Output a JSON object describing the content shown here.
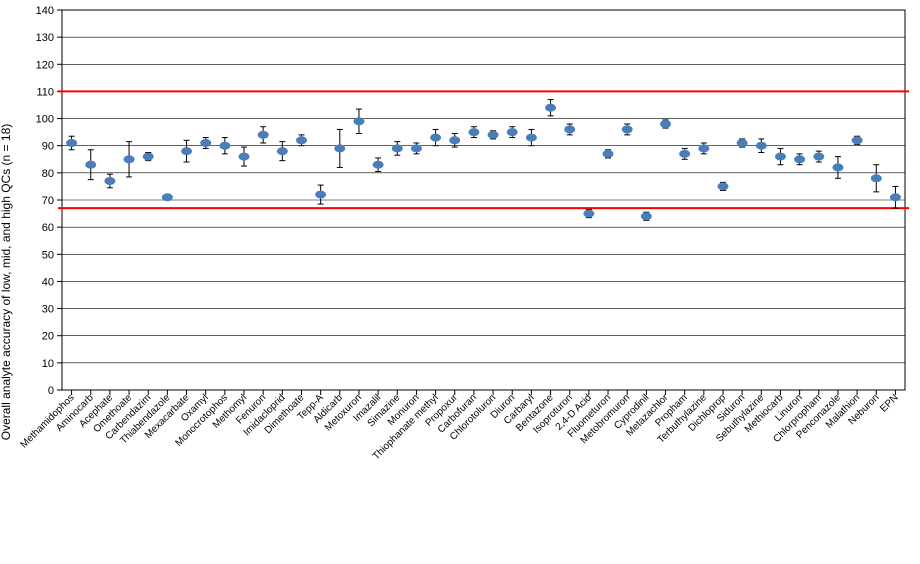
{
  "chart": {
    "type": "scatter-errorbar",
    "ylabel": "Overall analyte accuracy of low, mid, and high QCs (n = 18)",
    "ylim": [
      0,
      140
    ],
    "ytick_step": 10,
    "background_color": "#ffffff",
    "grid_color": "#000000",
    "grid_linewidth": 0.6,
    "axis_linewidth": 1,
    "marker_color": "#4a7ebb",
    "marker_radius_x": 5.5,
    "marker_radius_y": 4,
    "errorbar_color": "#000000",
    "errorbar_linewidth": 1,
    "errorbar_cap": 3,
    "ref_lines": [
      {
        "y": 110,
        "color": "#ff0000",
        "width": 2
      },
      {
        "y": 67,
        "color": "#ff0000",
        "width": 2
      }
    ],
    "label_fontsize": 10,
    "ytick_fontsize": 11,
    "data": [
      {
        "label": "Methamidophos",
        "y": 91,
        "err": 2.5
      },
      {
        "label": "Aminocarb",
        "y": 83,
        "err": 5.5
      },
      {
        "label": "Acephate",
        "y": 77,
        "err": 2.5
      },
      {
        "label": "Omethoate",
        "y": 85,
        "err": 6.5
      },
      {
        "label": "Carbendazim",
        "y": 86,
        "err": 1.5
      },
      {
        "label": "Thiabendazole",
        "y": 71,
        "err": 1
      },
      {
        "label": "Mexacarbate",
        "y": 88,
        "err": 4
      },
      {
        "label": "Oxamyl",
        "y": 91,
        "err": 2
      },
      {
        "label": "Monocrotophos",
        "y": 90,
        "err": 3
      },
      {
        "label": "Methomyl",
        "y": 86,
        "err": 3.5
      },
      {
        "label": "Fenuron",
        "y": 94,
        "err": 3
      },
      {
        "label": "Imidacloprid",
        "y": 88,
        "err": 3.5
      },
      {
        "label": "Dimethoate",
        "y": 92,
        "err": 2
      },
      {
        "label": "Tepp-A",
        "y": 72,
        "err": 3.5
      },
      {
        "label": "Aldicarb",
        "y": 89,
        "err": 7
      },
      {
        "label": "Metoxuron",
        "y": 99,
        "err": 4.5
      },
      {
        "label": "Imazalil",
        "y": 83,
        "err": 2.5
      },
      {
        "label": "Simazine",
        "y": 89,
        "err": 2.5
      },
      {
        "label": "Monuron",
        "y": 89,
        "err": 2
      },
      {
        "label": "Thiophanate methyl",
        "y": 93,
        "err": 3
      },
      {
        "label": "Propoxur",
        "y": 92,
        "err": 2.5
      },
      {
        "label": "Carbofuran",
        "y": 95,
        "err": 2
      },
      {
        "label": "Chlorotoluron",
        "y": 94,
        "err": 1.5
      },
      {
        "label": "Diuron",
        "y": 95,
        "err": 2
      },
      {
        "label": "Carbaryl",
        "y": 93,
        "err": 3
      },
      {
        "label": "Bentazone",
        "y": 104,
        "err": 3
      },
      {
        "label": "Isoproturon",
        "y": 96,
        "err": 2
      },
      {
        "label": "2,4-D Acid",
        "y": 65,
        "err": 1.5
      },
      {
        "label": "Fluometuron",
        "y": 87,
        "err": 1.5
      },
      {
        "label": "Metobromuron",
        "y": 96,
        "err": 2
      },
      {
        "label": "Cyprodinil",
        "y": 64,
        "err": 1.5
      },
      {
        "label": "Metazachlor",
        "y": 98,
        "err": 1.5
      },
      {
        "label": "Propham",
        "y": 87,
        "err": 2
      },
      {
        "label": "Terbuthylazine",
        "y": 89,
        "err": 2
      },
      {
        "label": "Dichloprop",
        "y": 75,
        "err": 1.5
      },
      {
        "label": "Siduron",
        "y": 91,
        "err": 1.5
      },
      {
        "label": "Sebuthylazine",
        "y": 90,
        "err": 2.5
      },
      {
        "label": "Methiocarb",
        "y": 86,
        "err": 3
      },
      {
        "label": "Linuron",
        "y": 85,
        "err": 2
      },
      {
        "label": "Chlorpropham",
        "y": 86,
        "err": 2
      },
      {
        "label": "Penconazole",
        "y": 82,
        "err": 4
      },
      {
        "label": "Malathion",
        "y": 92,
        "err": 1.5
      },
      {
        "label": "Neburon",
        "y": 78,
        "err": 5
      },
      {
        "label": "EPN",
        "y": 71,
        "err": 4
      }
    ]
  }
}
